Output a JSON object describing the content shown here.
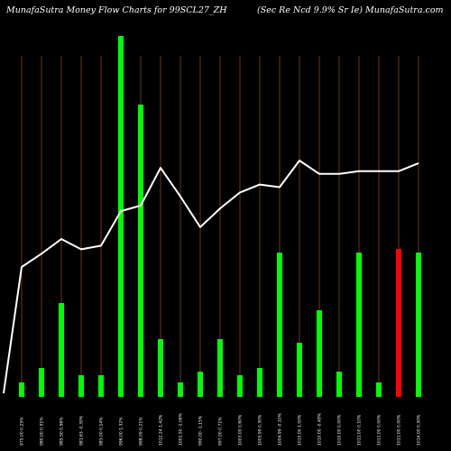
{
  "header": {
    "left_title": "MunafaSutra  Money Flow  Charts for 99SCL27_ZH",
    "right_title": "(Sec Re   Ncd 9.9% Sr Ie) MunafaSutra.com"
  },
  "colors": {
    "background": "#000000",
    "bar_up": "#00ff00",
    "bar_down": "#ff0000",
    "price_line": "#ffffff",
    "grid": "#8b4513"
  },
  "chart_data": {
    "type": "bar",
    "grid": true,
    "categories": [
      "975.00 0.25%",
      "980.00 0.51%",
      "985.50 0.56%",
      "981.63 -0.39%",
      "983.00 0.14%",
      "996.00 1.32%",
      "998.09 0.21%",
      "1012.24 1.42%",
      "1001.50 -1.06%",
      "990.00 -1.15%",
      "997.00 0.71%",
      "1003.00 0.60%",
      "1005.99 0.30%",
      "1004.99 -0.10%",
      "1015.00 1.00%",
      "1010.00 -0.49%",
      "1010.00 0.00%",
      "1011.00 0.10%",
      "1011.00 0.00%",
      "1011.00 0.00%",
      "1014.00 0.30%"
    ],
    "series": [
      {
        "values": [
          4,
          8,
          26,
          6,
          6,
          100,
          81,
          16,
          4,
          7,
          16,
          6,
          8,
          40,
          15,
          24,
          7,
          40,
          4,
          41,
          40
        ],
        "colors": [
          "up",
          "up",
          "up",
          "up",
          "up",
          "up",
          "up",
          "up",
          "up",
          "up",
          "up",
          "up",
          "up",
          "up",
          "up",
          "up",
          "up",
          "up",
          "up",
          "down",
          "up"
        ]
      }
    ],
    "price_line": [
      975,
      980,
      985.5,
      981.63,
      983,
      996,
      998.09,
      1012.24,
      1001.5,
      990,
      997,
      1003,
      1005.99,
      1004.99,
      1015,
      1010,
      1010,
      1011,
      1011,
      1011,
      1014
    ]
  }
}
